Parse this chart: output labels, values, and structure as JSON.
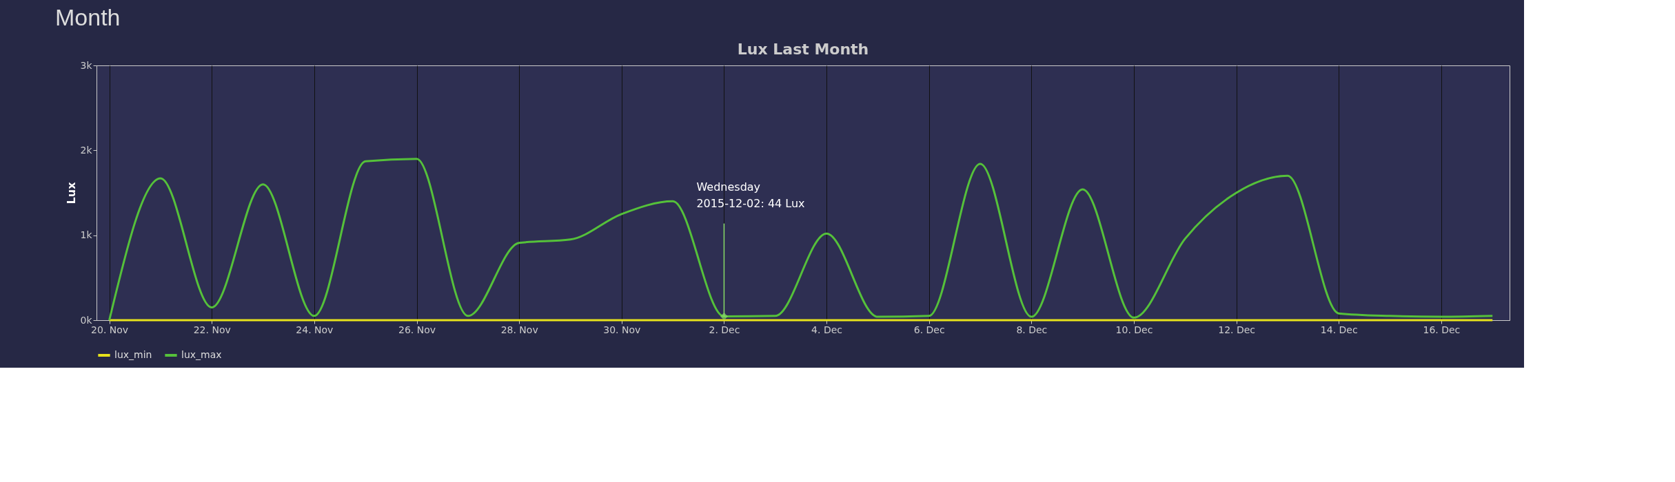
{
  "chart_data": {
    "type": "line",
    "title": "Lux Last Month",
    "ylabel": "Lux",
    "x": [
      "2015-11-20",
      "2015-11-21",
      "2015-11-22",
      "2015-11-23",
      "2015-11-24",
      "2015-11-25",
      "2015-11-26",
      "2015-11-27",
      "2015-11-28",
      "2015-11-29",
      "2015-11-30",
      "2015-12-01",
      "2015-12-02",
      "2015-12-03",
      "2015-12-04",
      "2015-12-05",
      "2015-12-06",
      "2015-12-07",
      "2015-12-08",
      "2015-12-09",
      "2015-12-10",
      "2015-12-11",
      "2015-12-12",
      "2015-12-13",
      "2015-12-14",
      "2015-12-15",
      "2015-12-16",
      "2015-12-17"
    ],
    "series": [
      {
        "name": "lux_min",
        "color": "#e6e21c",
        "values": [
          0,
          0,
          0,
          0,
          0,
          0,
          0,
          0,
          0,
          0,
          0,
          0,
          0,
          0,
          0,
          0,
          0,
          0,
          0,
          0,
          0,
          0,
          0,
          0,
          0,
          0,
          0,
          0
        ]
      },
      {
        "name": "lux_max",
        "color": "#55c13a",
        "values": [
          0,
          1670,
          150,
          1600,
          50,
          1870,
          1900,
          50,
          910,
          950,
          1250,
          1400,
          44,
          50,
          1020,
          40,
          50,
          1840,
          40,
          1540,
          30,
          960,
          1500,
          1700,
          80,
          50,
          40,
          50
        ]
      }
    ],
    "xlim": [
      "2015-11-19T18:00",
      "2015-12-17T08:00"
    ],
    "xticks": [
      {
        "value": "2015-11-20",
        "label": "20. Nov"
      },
      {
        "value": "2015-11-22",
        "label": "22. Nov"
      },
      {
        "value": "2015-11-24",
        "label": "24. Nov"
      },
      {
        "value": "2015-11-26",
        "label": "26. Nov"
      },
      {
        "value": "2015-11-28",
        "label": "28. Nov"
      },
      {
        "value": "2015-11-30",
        "label": "30. Nov"
      },
      {
        "value": "2015-12-02",
        "label": "2. Dec"
      },
      {
        "value": "2015-12-04",
        "label": "4. Dec"
      },
      {
        "value": "2015-12-06",
        "label": "6. Dec"
      },
      {
        "value": "2015-12-08",
        "label": "8. Dec"
      },
      {
        "value": "2015-12-10",
        "label": "10. Dec"
      },
      {
        "value": "2015-12-12",
        "label": "12. Dec"
      },
      {
        "value": "2015-12-14",
        "label": "14. Dec"
      },
      {
        "value": "2015-12-16",
        "label": "16. Dec"
      }
    ],
    "ylim": [
      0,
      3000
    ],
    "yticks": [
      {
        "value": 0,
        "label": "0k"
      },
      {
        "value": 1000,
        "label": "1k"
      },
      {
        "value": 2000,
        "label": "2k"
      },
      {
        "value": 3000,
        "label": "3k"
      }
    ],
    "grid": "x",
    "legend": "bottom",
    "marker": "none",
    "line_style": "solid",
    "annotations": [
      "Month",
      {
        "text": "Wednesday\n2015-12-02: 44 Lux",
        "x": "2015-12-02",
        "y": 44
      }
    ]
  }
}
